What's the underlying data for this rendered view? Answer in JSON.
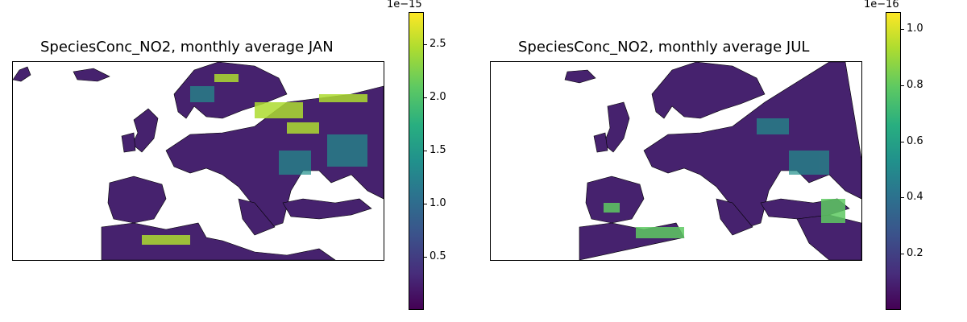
{
  "panels": [
    {
      "title": "SpeciesConc_NO2, monthly average JAN",
      "colorbar": {
        "exponent": "1e−15",
        "ticks": [
          "0.5",
          "1.0",
          "1.5",
          "2.0",
          "2.5"
        ],
        "tick_values": [
          0.5,
          1.0,
          1.5,
          2.0,
          2.5
        ],
        "vmin": 0.0,
        "vmax": 2.8
      }
    },
    {
      "title": "SpeciesConc_NO2, monthly average JUL",
      "colorbar": {
        "exponent": "1e−16",
        "ticks": [
          "0.2",
          "0.4",
          "0.6",
          "0.8",
          "1.0"
        ],
        "tick_values": [
          0.2,
          0.4,
          0.6,
          0.8,
          1.0
        ],
        "vmin": 0.0,
        "vmax": 1.06
      }
    }
  ],
  "colors": {
    "colormap": "viridis",
    "low": "#440154",
    "high": "#fde725",
    "border": "#000000"
  }
}
